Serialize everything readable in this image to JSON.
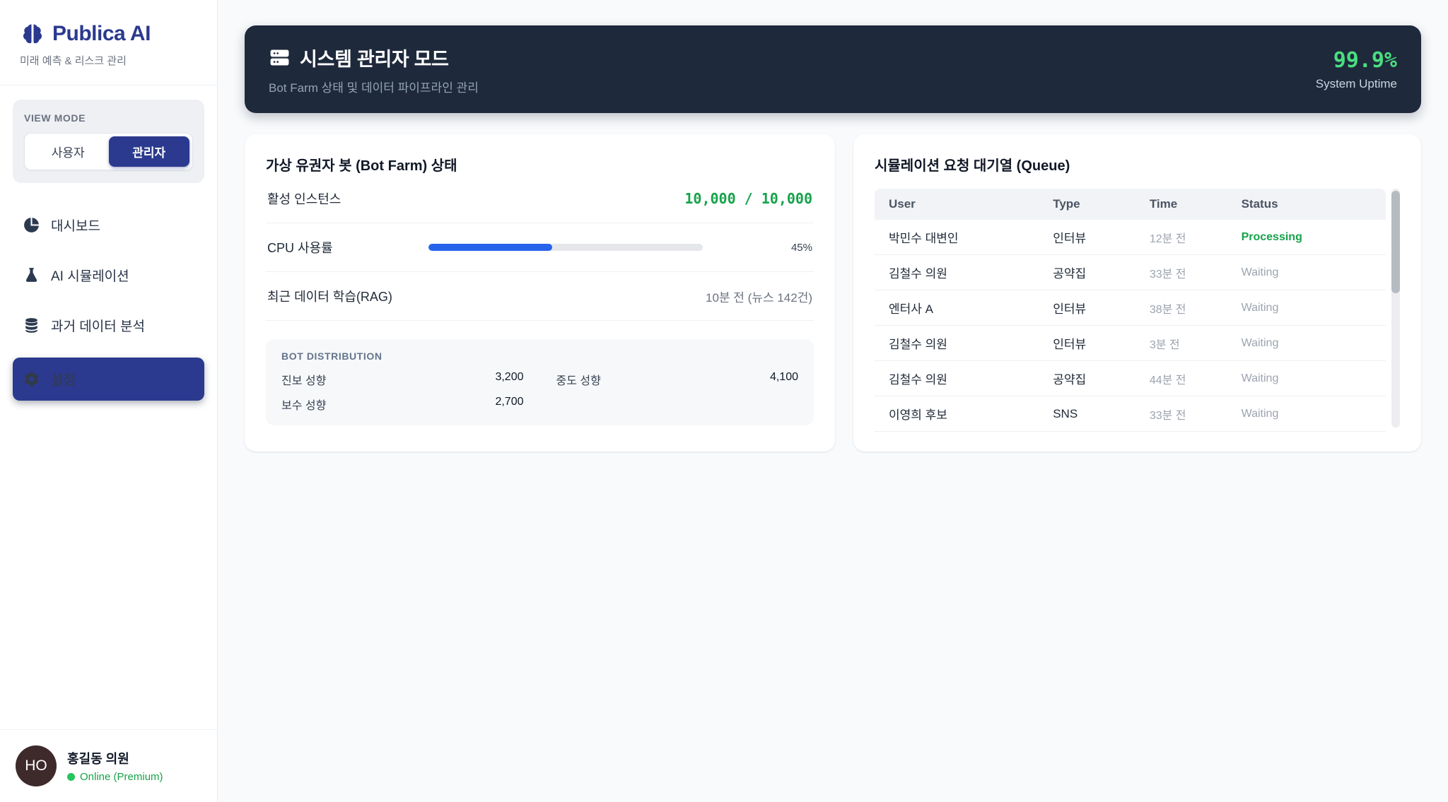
{
  "brand": {
    "name": "Publica AI",
    "tagline": "미래 예측 & 리스크 관리"
  },
  "view_mode": {
    "label": "VIEW MODE",
    "options": [
      {
        "label": "사용자",
        "active": false
      },
      {
        "label": "관리자",
        "active": true
      }
    ]
  },
  "nav": {
    "items": [
      {
        "label": "대시보드",
        "icon": "pie-chart-icon",
        "active": false
      },
      {
        "label": "AI 시뮬레이션",
        "icon": "flask-icon",
        "active": false
      },
      {
        "label": "과거 데이터 분석",
        "icon": "database-icon",
        "active": false
      },
      {
        "label": "설정",
        "icon": "gear-icon",
        "active": true
      }
    ]
  },
  "user": {
    "initials": "HO",
    "name": "홍길동 의원",
    "status": "Online (Premium)"
  },
  "header": {
    "icon": "server-icon",
    "title": "시스템 관리자 모드",
    "subtitle": "Bot Farm 상태 및 데이터 파이프라인 관리",
    "uptime_value": "99.9%",
    "uptime_label": "System Uptime"
  },
  "bot_farm": {
    "title": "가상 유권자 봇 (Bot Farm) 상태",
    "rows": [
      {
        "label": "활성 인스턴스",
        "value": "10,000 / 10,000"
      },
      {
        "label": "CPU 사용률",
        "percent": 45,
        "value": "45%"
      },
      {
        "label": "최근 데이터 학습(RAG)",
        "value": "10분 전 (뉴스 142건)"
      }
    ],
    "distribution": {
      "title": "BOT DISTRIBUTION",
      "items": [
        {
          "label": "진보 성향",
          "value": "3,200"
        },
        {
          "label": "중도 성향",
          "value": "4,100"
        },
        {
          "label": "보수 성향",
          "value": "2,700"
        }
      ]
    }
  },
  "queue": {
    "title": "시뮬레이션 요청 대기열 (Queue)",
    "columns": [
      "User",
      "Type",
      "Time",
      "Status"
    ],
    "rows": [
      {
        "user": "박민수 대변인",
        "type": "인터뷰",
        "time": "12분 전",
        "status": "Processing"
      },
      {
        "user": "김철수 의원",
        "type": "공약집",
        "time": "33분 전",
        "status": "Waiting"
      },
      {
        "user": "엔터사 A",
        "type": "인터뷰",
        "time": "38분 전",
        "status": "Waiting"
      },
      {
        "user": "김철수 의원",
        "type": "인터뷰",
        "time": "3분 전",
        "status": "Waiting"
      },
      {
        "user": "김철수 의원",
        "type": "공약집",
        "time": "44분 전",
        "status": "Waiting"
      },
      {
        "user": "이영희 후보",
        "type": "SNS",
        "time": "33분 전",
        "status": "Waiting"
      }
    ]
  },
  "colors": {
    "brand_navy": "#2b3a8e",
    "banner_bg": "#1e293b",
    "uptime_green": "#4ade80",
    "success_green": "#16a34a",
    "progress_blue": "#2563eb",
    "muted_gray": "#9ca3af",
    "avatar_brown": "#3e292b"
  }
}
